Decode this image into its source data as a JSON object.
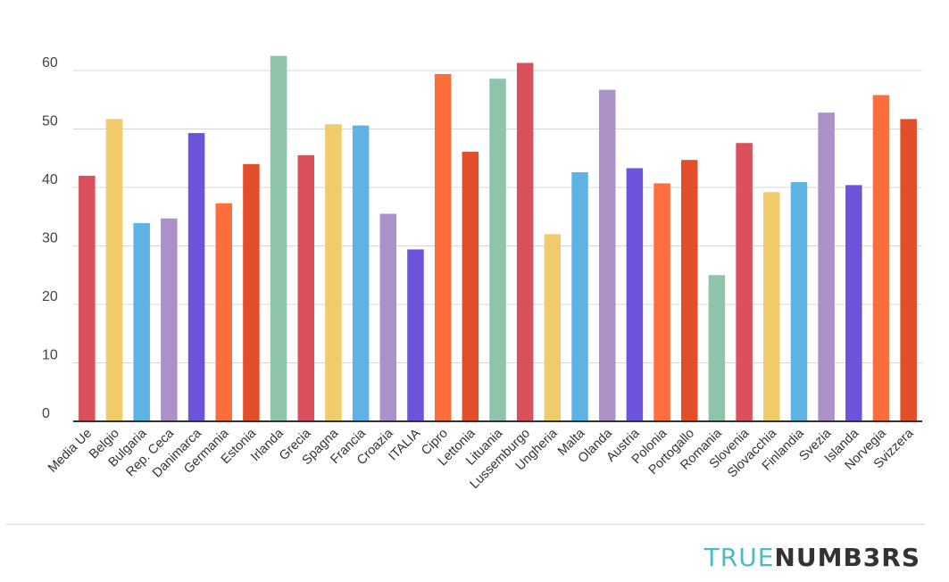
{
  "chart_data": {
    "type": "bar",
    "title": "",
    "xlabel": "",
    "ylabel": "",
    "ylim": [
      0,
      60
    ],
    "yticks": [
      0,
      10,
      20,
      30,
      40,
      50,
      60
    ],
    "grid": true,
    "categories": [
      "Media Ue",
      "Belgio",
      "Bulgaria",
      "Rep. Ceca",
      "Danimarca",
      "Germania",
      "Estonia",
      "Irlanda",
      "Grecia",
      "Spagna",
      "Francia",
      "Croazia",
      "ITALIA",
      "Cipro",
      "Lettonia",
      "Lituania",
      "Lussemburgo",
      "Ungheria",
      "Malta",
      "Olanda",
      "Austria",
      "Polonia",
      "Portogallo",
      "Romania",
      "Slovenia",
      "Slovacchia",
      "Finlandia",
      "Svezia",
      "Islanda",
      "Norvegia",
      "Svizzera"
    ],
    "values": [
      42,
      51.7,
      33.9,
      34.7,
      49.3,
      37.3,
      44,
      62.5,
      45.5,
      50.8,
      50.6,
      35.5,
      29.4,
      59.4,
      46.1,
      58.6,
      61.3,
      32,
      42.6,
      56.7,
      43.3,
      40.7,
      44.7,
      25,
      47.6,
      39.2,
      40.9,
      52.8,
      40.4,
      55.8,
      51.7
    ],
    "colors": [
      "#d9525b",
      "#efcb6c",
      "#5fb3e4",
      "#aa92c8",
      "#6c53d9",
      "#fd6e3c",
      "#e34e2a",
      "#8ec4a9",
      "#d9525b",
      "#efcb6c",
      "#5fb3e4",
      "#aa92c8",
      "#6c53d9",
      "#fd6e3c",
      "#e34e2a",
      "#8ec4a9",
      "#d9525b",
      "#efcb6c",
      "#5fb3e4",
      "#aa92c8",
      "#6c53d9",
      "#fd6e3c",
      "#e34e2a",
      "#8ec4a9",
      "#d9525b",
      "#efcb6c",
      "#5fb3e4",
      "#aa92c8",
      "#6c53d9",
      "#fd6e3c",
      "#e34e2a"
    ]
  },
  "footer": {
    "logo_part1": "TRUE",
    "logo_part2": "NUMB3RS"
  }
}
